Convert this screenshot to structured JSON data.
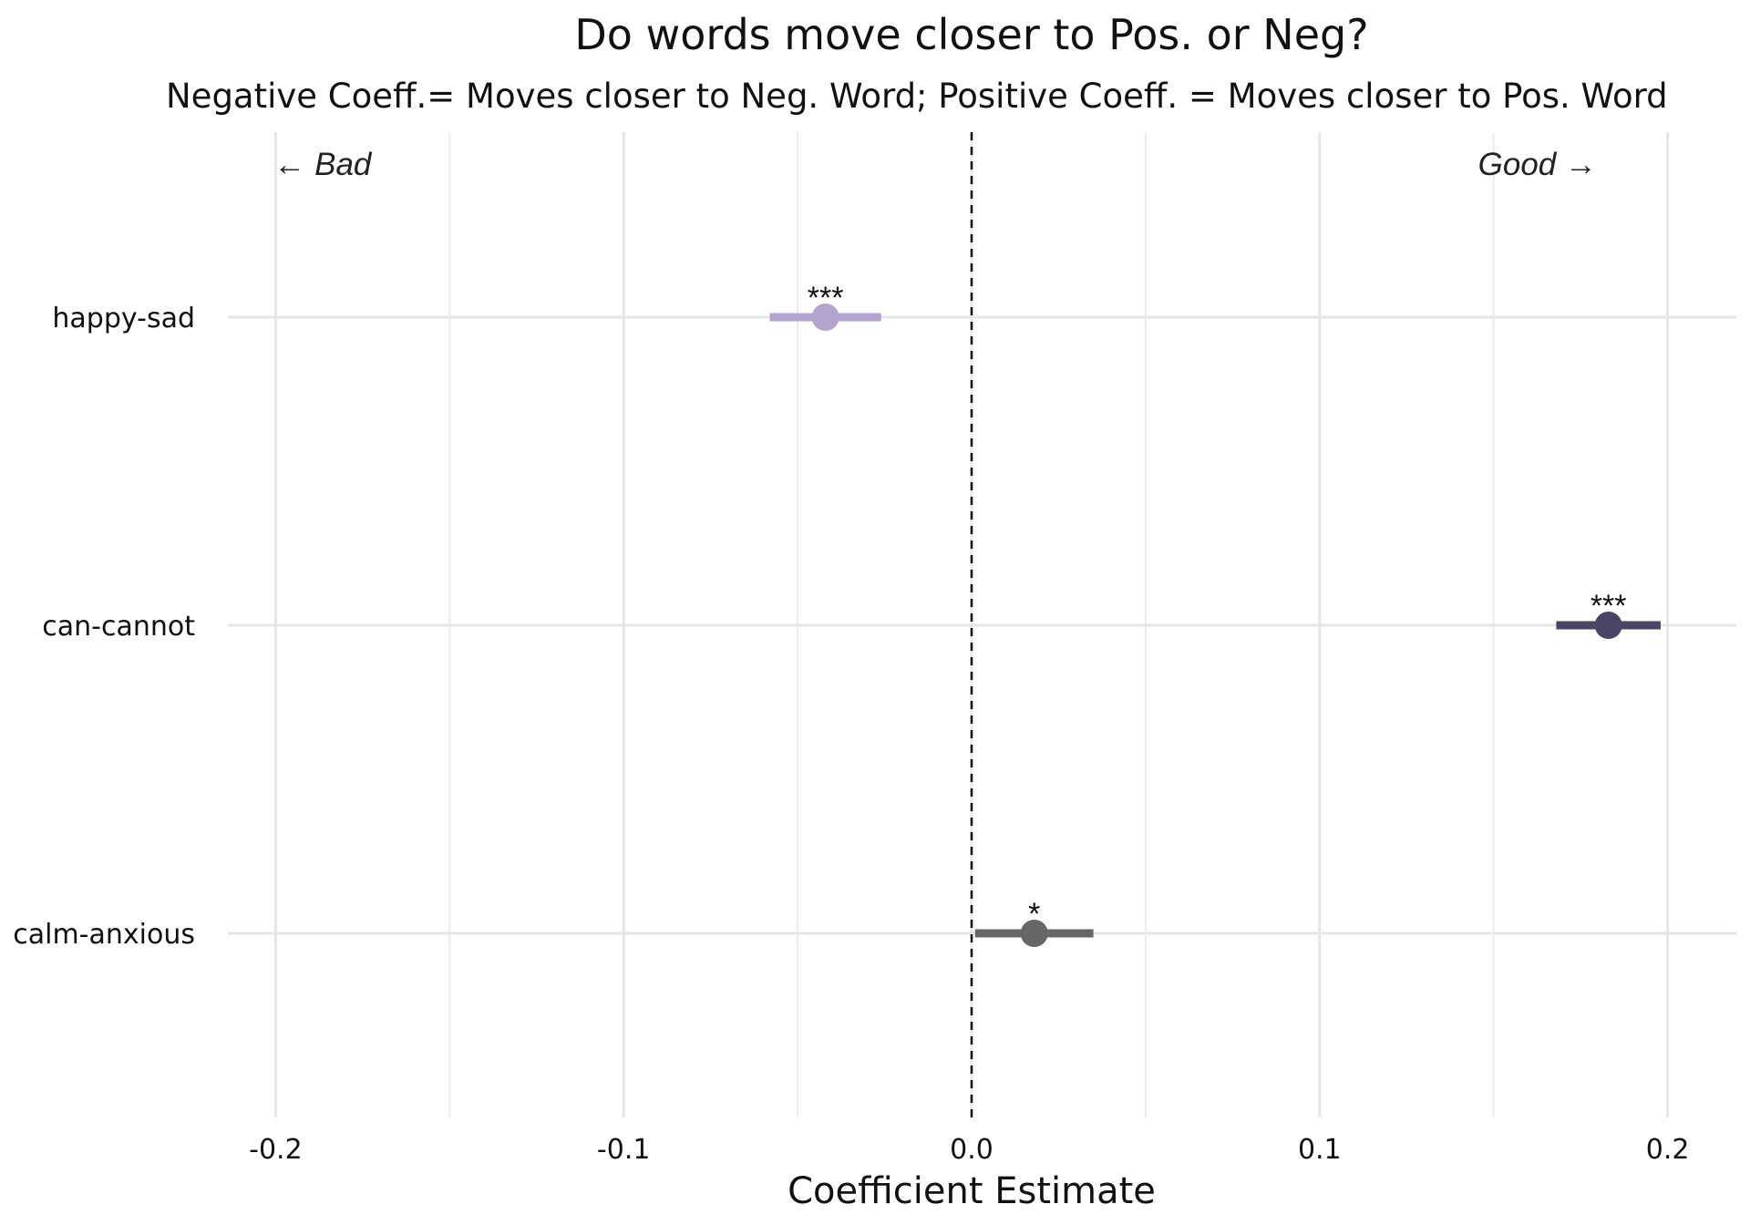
{
  "chart_data": {
    "type": "forest",
    "title": "Do words move closer to Pos. or Neg?",
    "subtitle": "Negative Coeff.= Moves closer to Neg. Word; Positive Coeff. = Moves closer to Pos. Word",
    "xlabel": "Coefficient Estimate",
    "ylabel": "",
    "xlim": [
      -0.2,
      0.2
    ],
    "x_ticks": [
      "-0.2",
      "-0.1",
      "0.0",
      "0.1",
      "0.2"
    ],
    "x_tick_values": [
      -0.2,
      -0.1,
      0.0,
      0.1,
      0.2
    ],
    "reference_line": 0.0,
    "grid": true,
    "annotations": {
      "left": "← Bad",
      "right": "Good →"
    },
    "categories": [
      "happy-sad",
      "can-cannot",
      "calm-anxious"
    ],
    "points": [
      {
        "label": "happy-sad",
        "estimate": -0.042,
        "ci_low": -0.058,
        "ci_high": -0.026,
        "sig": "***",
        "color": "#b3a3cf"
      },
      {
        "label": "can-cannot",
        "estimate": 0.183,
        "ci_low": 0.168,
        "ci_high": 0.198,
        "sig": "***",
        "color": "#4a4465"
      },
      {
        "label": "calm-anxious",
        "estimate": 0.018,
        "ci_low": 0.001,
        "ci_high": 0.035,
        "sig": "*",
        "color": "#676767"
      }
    ]
  }
}
